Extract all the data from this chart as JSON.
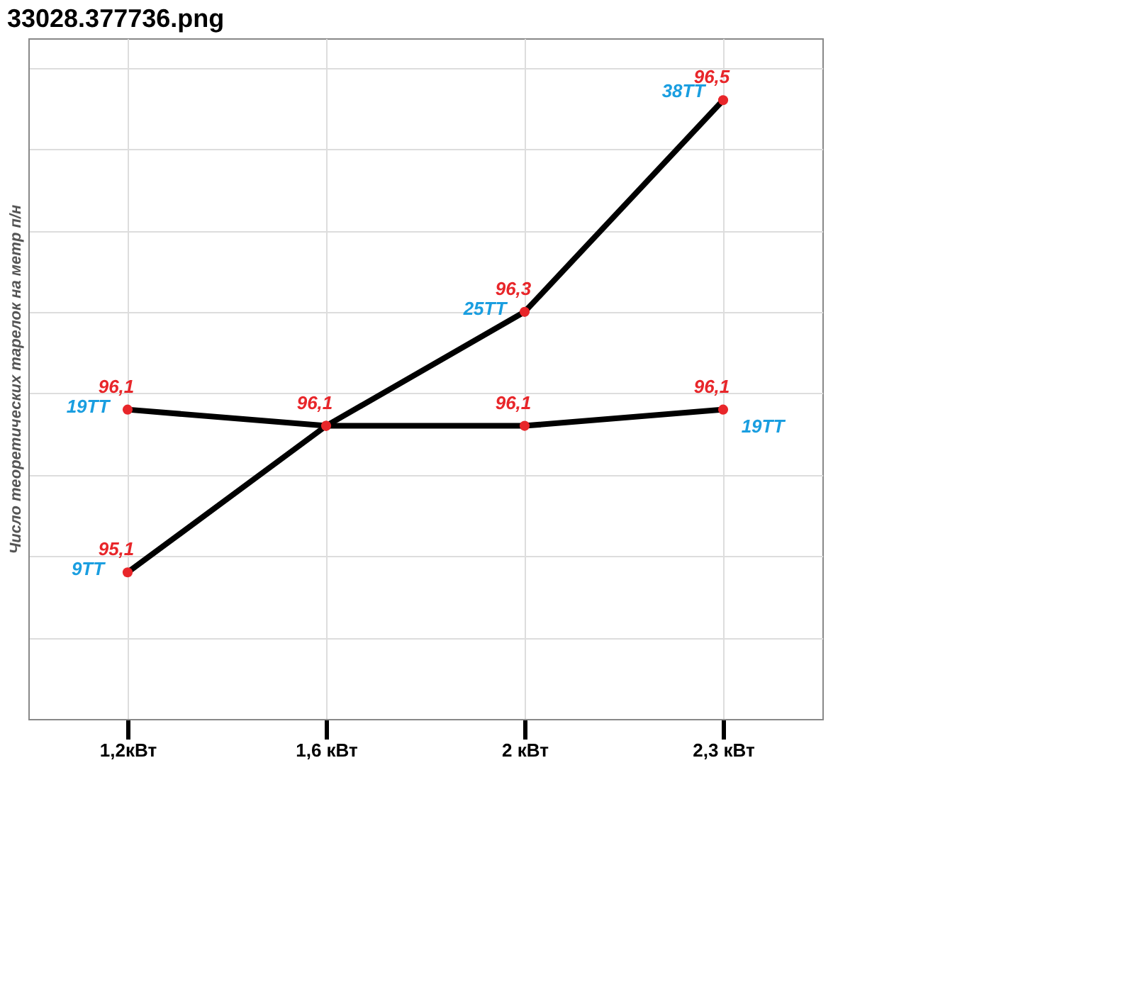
{
  "chart_data": {
    "type": "line",
    "title": "33028.377736.png",
    "ylabel": "Число теоретических тарелок на метр п/н",
    "categories": [
      "1,2кВт",
      "1,6 кВт",
      "2 кВт",
      "2,3 кВт"
    ],
    "series": [
      {
        "color": "#000000",
        "values": [
          9,
          18,
          25,
          38
        ],
        "value_labels": [
          "9TT",
          null,
          "25TT",
          "38TT"
        ]
      },
      {
        "color": "#000000",
        "values": [
          19,
          18,
          18,
          19
        ],
        "value_labels": [
          "19TT",
          null,
          null,
          "19TT"
        ]
      }
    ],
    "annotations": [
      {
        "text": "95,1",
        "x": "1,2кВт",
        "y": 9
      },
      {
        "text": "96,1",
        "x": "1,2кВт",
        "y": 19
      },
      {
        "text": "96,1",
        "x": "1,6 кВт",
        "y": 18
      },
      {
        "text": "96,3",
        "x": "2 кВт",
        "y": 25
      },
      {
        "text": "96,1",
        "x": "2 кВт",
        "y": 18
      },
      {
        "text": "96,5",
        "x": "2,3 кВт",
        "y": 38
      },
      {
        "text": "96,1",
        "x": "2,3 кВт",
        "y": 19
      }
    ],
    "grid": true,
    "tick_labels": "x",
    "marker": "circle",
    "line_style": "solid"
  }
}
